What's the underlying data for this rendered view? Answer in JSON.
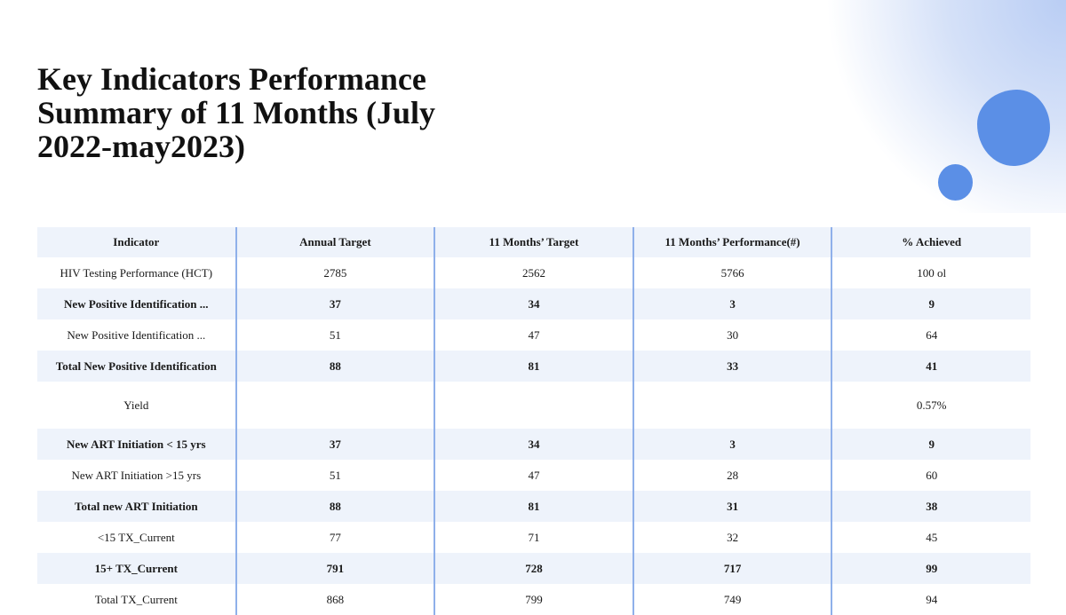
{
  "title": "Key Indicators Performance Summary of 11 Months (July 2022-may2023)",
  "table": {
    "headers": [
      "Indicator",
      "Annual Target",
      "11 Months’ Target",
      "11 Months’ Performance(#)",
      "% Achieved"
    ],
    "rows": [
      {
        "bold": false,
        "cells": [
          "HIV Testing Performance (HCT)",
          "2785",
          "2562",
          "5766",
          "100 ol"
        ]
      },
      {
        "bold": true,
        "cells": [
          "New Positive Identification ...",
          "37",
          "34",
          "3",
          "9"
        ]
      },
      {
        "bold": false,
        "cells": [
          "New Positive Identification ...",
          "51",
          "47",
          "30",
          "64"
        ]
      },
      {
        "bold": true,
        "cells": [
          "Total New Positive Identification",
          "88",
          "81",
          "33",
          "41"
        ]
      },
      {
        "bold": false,
        "tall": true,
        "cells": [
          "Yield",
          "",
          "",
          "",
          "0.57%"
        ]
      },
      {
        "bold": true,
        "cells": [
          "New ART Initiation < 15 yrs",
          "37",
          "34",
          "3",
          "9"
        ]
      },
      {
        "bold": false,
        "cells": [
          "New ART Initiation >15 yrs",
          "51",
          "47",
          "28",
          "60"
        ]
      },
      {
        "bold": true,
        "cells": [
          "Total new ART Initiation",
          "88",
          "81",
          "31",
          "38"
        ]
      },
      {
        "bold": false,
        "cells": [
          "<15 TX_Current",
          "77",
          "71",
          "32",
          "45"
        ]
      },
      {
        "bold": true,
        "cells": [
          "15+ TX_Current",
          "791",
          "728",
          "717",
          "99"
        ]
      },
      {
        "bold": false,
        "cells": [
          "Total TX_Current",
          "868",
          "799",
          "749",
          "94"
        ]
      }
    ]
  },
  "colors": {
    "accent": "#5b8fe6",
    "row_shade": "#eef3fb",
    "divider": "#8fb0ea"
  }
}
